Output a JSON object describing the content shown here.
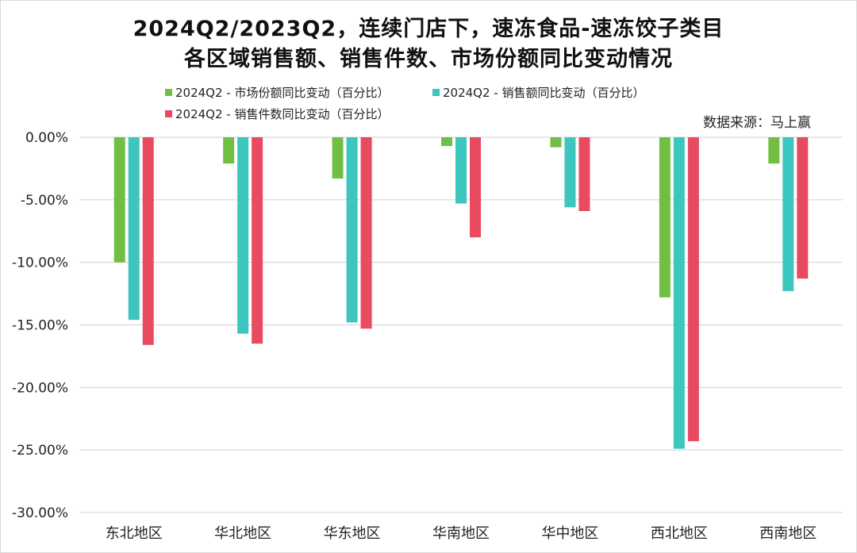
{
  "title_line1": "2024Q2/2023Q2，连续门店下，速冻食品-速冻饺子类目",
  "title_line2": "各区域销售额、销售件数、市场份额同比变动情况",
  "source_text": "数据来源：马上赢",
  "chart_data": {
    "type": "bar",
    "title": "2024Q2/2023Q2，连续门店下，速冻食品-速冻饺子类目 各区域销售额、销售件数、市场份额同比变动情况",
    "xlabel": "",
    "ylabel": "",
    "ylim": [
      -30,
      0
    ],
    "yticks": [
      0,
      -5,
      -10,
      -15,
      -20,
      -25,
      -30
    ],
    "ytick_labels": [
      "0.00%",
      "-5.00%",
      "-10.00%",
      "-15.00%",
      "-20.00%",
      "-25.00%",
      "-30.00%"
    ],
    "grid": true,
    "legend_position": "top",
    "categories": [
      "东北地区",
      "华北地区",
      "华东地区",
      "华南地区",
      "华中地区",
      "西北地区",
      "西南地区"
    ],
    "series": [
      {
        "name": "2024Q2 - 市场份额同比变动（百分比）",
        "color": "#70bf44",
        "values": [
          -10.0,
          -2.1,
          -3.3,
          -0.7,
          -0.8,
          -12.8,
          -2.1
        ]
      },
      {
        "name": "2024Q2 - 销售额同比变动（百分比）",
        "color": "#3cc6bd",
        "values": [
          -14.6,
          -15.7,
          -14.8,
          -5.3,
          -5.6,
          -24.9,
          -12.3
        ]
      },
      {
        "name": "2024Q2 - 销售件数同比变动（百分比）",
        "color": "#e84a5f",
        "values": [
          -16.6,
          -16.5,
          -15.3,
          -8.0,
          -5.9,
          -24.3,
          -11.3
        ]
      }
    ]
  }
}
